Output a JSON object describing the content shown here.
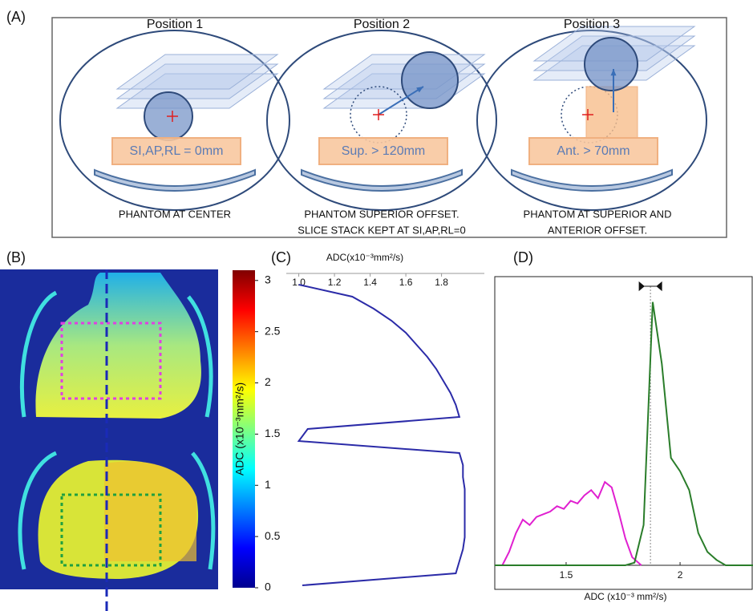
{
  "panels": {
    "a": "(A)",
    "b": "(B)",
    "c": "(C)",
    "d": "(D)"
  },
  "positions": [
    {
      "title": "Position 1",
      "offset_label": "SI,AP,RL = 0mm",
      "caption": [
        "PHANTOM AT CENTER"
      ]
    },
    {
      "title": "Position 2",
      "offset_label": "Sup. > 120mm",
      "caption": [
        "PHANTOM SUPERIOR OFFSET.",
        "SLICE STACK KEPT AT SI,AP,RL=0"
      ]
    },
    {
      "title": "Position 3",
      "offset_label": "Ant. > 70mm",
      "caption": [
        "PHANTOM AT SUPERIOR AND",
        "ANTERIOR OFFSET."
      ]
    }
  ],
  "colorbar": {
    "label": "ADC (x10⁻³mm²/s)",
    "clim": [
      0,
      3.1
    ],
    "ticks": [
      0,
      0.5,
      1,
      1.5,
      2,
      2.5,
      3
    ]
  },
  "chart_data": [
    {
      "type": "profile",
      "x_label": "ADC(x10⁻³mm²/s)",
      "xlim": [
        0.93,
        2.04
      ],
      "xticks": [
        {
          "value": 1,
          "label": "1.0"
        },
        1.2,
        1.4,
        1.6,
        1.8
      ],
      "series": [
        {
          "color": "#2b2ba8",
          "values": [
            1.0,
            1.3,
            1.42,
            1.52,
            1.6,
            1.66,
            1.72,
            1.77,
            1.81,
            1.85,
            1.88,
            1.9,
            1.05,
            1.0,
            1.9,
            1.92,
            1.92,
            1.93,
            1.93,
            1.93,
            1.93,
            1.93,
            1.92,
            1.9,
            1.88,
            1.02
          ]
        }
      ]
    },
    {
      "type": "line",
      "x_label": "ADC (x10⁻³ mm²/s)",
      "xlim": [
        1.187,
        2.32
      ],
      "ylim": [
        0,
        100
      ],
      "xticks": [
        1.5,
        2
      ],
      "marker_x": 1.87,
      "series": [
        {
          "color": "#e020d0",
          "x": [
            1.22,
            1.25,
            1.28,
            1.31,
            1.34,
            1.37,
            1.4,
            1.43,
            1.46,
            1.49,
            1.52,
            1.55,
            1.58,
            1.61,
            1.64,
            1.67,
            1.7,
            1.73,
            1.76,
            1.79,
            1.83
          ],
          "values": [
            0,
            5,
            12,
            17,
            15,
            18,
            19,
            20,
            22,
            21,
            24,
            23,
            26,
            28,
            25,
            31,
            29,
            20,
            10,
            3,
            0
          ]
        },
        {
          "color": "#2a7d2a",
          "x": [
            1.187,
            1.76,
            1.8,
            1.84,
            1.88,
            1.92,
            1.96,
            2.0,
            2.04,
            2.08,
            2.12,
            2.16,
            2.2,
            2.32
          ],
          "values": [
            0,
            0,
            1,
            15,
            98,
            75,
            40,
            35,
            28,
            12,
            5,
            2,
            0,
            0
          ]
        }
      ]
    }
  ]
}
